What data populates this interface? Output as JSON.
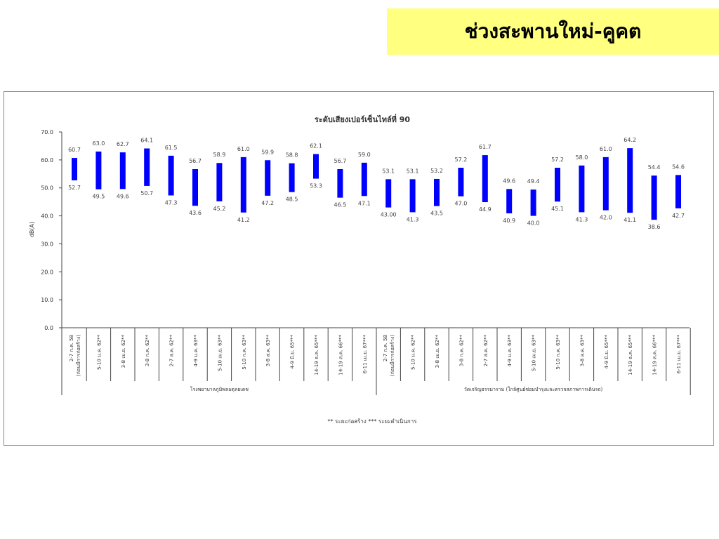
{
  "banner": {
    "title": "ช่วงสะพานใหม่-คูคต",
    "color": "#ffff80"
  },
  "chart_data": {
    "type": "bar",
    "subtype": "floating-range",
    "title": "ระดับเสียงเปอร์เซ็นไทล์ที่ 90",
    "ylabel": "dB(A)",
    "xlabel": "",
    "ylim": [
      0,
      70
    ],
    "yticks": [
      "0.0",
      "10.0",
      "20.0",
      "30.0",
      "40.0",
      "50.0",
      "60.0",
      "70.0"
    ],
    "grid": false,
    "bar_color": "#0000ff",
    "groups": [
      {
        "name": "โรงพยาบาลภูมิพลอดุลยเดช",
        "categories": [
          "2-7 ก.ค. 58|(ก่อนมีการก่อสร้าง)",
          "5-10 ม.ค. 62**",
          "3-8 เม.ย. 62**",
          "3-8 ก.ค. 62**",
          "2-7 ส.ค. 62**",
          "4-9 ม.ค. 63**",
          "5-10 เม.ย. 63**",
          "5-10 ก.ค. 63**",
          "3-8 ส.ค. 63**",
          "4-9 มิ.ย. 65***",
          "14-19 ธ.ค. 65***",
          "14-19 ส.ค. 66***",
          "6-11 เม.ย. 67***"
        ],
        "high": [
          "60.7",
          "63.0",
          "62.7",
          "64.1",
          "61.5",
          "56.7",
          "58.9",
          "61.0",
          "59.9",
          "58.8",
          "62.1",
          "56.7",
          "59.0"
        ],
        "low": [
          "52.7",
          "49.5",
          "49.6",
          "50.7",
          "47.3",
          "43.6",
          "45.2",
          "41.2",
          "47.2",
          "48.5",
          "53.3",
          "46.5",
          "47.1"
        ]
      },
      {
        "name": "วัดเจริญธรรมาราม (ใกล้ศูนย์ซ่อมบำรุงและตรวจสภาพการเดินรถ)",
        "categories": [
          "2-7 ก.ค. 58|(ก่อนมีการก่อสร้าง)",
          "5-10 ม.ค. 62**",
          "3-8 เม.ย. 62**",
          "3-8 ก.ค. 62**",
          "2-7 ส.ค. 62**",
          "4-9 ม.ค. 63**",
          "5-10 เม.ย. 63**",
          "5-10 ก.ค. 63**",
          "3-8 ส.ค. 63**",
          "4-9 มิ.ย. 65***",
          "14-19 ธ.ค. 65***",
          "14-19 ส.ค. 66***",
          "6-11 เม.ย. 67***"
        ],
        "high": [
          "53.1",
          "53.1",
          "53.2",
          "57.2",
          "61.7",
          "49.6",
          "49.4",
          "57.2",
          "58.0",
          "61.0",
          "64.2",
          "54.4",
          "54.6"
        ],
        "low": [
          "43.00",
          "41.3",
          "43.5",
          "47.0",
          "44.9",
          "40.9",
          "40.0",
          "45.1",
          "41.3",
          "42.0",
          "41.1",
          "38.6",
          "42.7"
        ]
      }
    ],
    "footnote": "** ระยะก่อสร้าง    *** ระยะดำเนินการ"
  }
}
